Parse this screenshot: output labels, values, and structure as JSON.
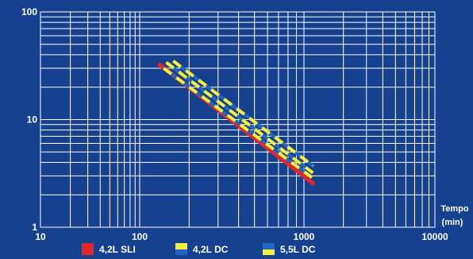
{
  "chart_data": {
    "type": "line",
    "title": "",
    "xlabel": "Tempo",
    "xunit": "(min)",
    "ylabel": "",
    "xscale": "log",
    "yscale": "log",
    "xlim": [
      10,
      10000
    ],
    "ylim": [
      1,
      100
    ],
    "x_ticks": [
      "10",
      "100",
      "1000",
      "10000"
    ],
    "y_ticks": [
      "1",
      "10",
      "100"
    ],
    "grid": true,
    "legend_position": "bottom",
    "background_color": "#16418f",
    "series": [
      {
        "name": "4,2L SLI",
        "style": "solid",
        "colors": [
          "#e3262a"
        ],
        "points": [
          [
            130,
            33
          ],
          [
            1200,
            2.5
          ]
        ]
      },
      {
        "name": "4,2L DC",
        "style": "dashed",
        "colors": [
          "#f7ef3a",
          "#1f67c2"
        ],
        "points": [
          [
            140,
            30
          ],
          [
            1150,
            2.9
          ]
        ]
      },
      {
        "name": "4,2L DC",
        "style": "dashed",
        "colors": [
          "#f7ef3a",
          "#1f67c2"
        ],
        "points": [
          [
            145,
            34
          ],
          [
            1170,
            3.2
          ]
        ]
      },
      {
        "name": "5,5L DC",
        "style": "dashed",
        "colors": [
          "#f7ef3a",
          "#1f67c2"
        ],
        "points": [
          [
            160,
            35
          ],
          [
            1180,
            3.7
          ]
        ]
      }
    ],
    "legend": [
      {
        "label": "4,2L SLI",
        "colors": [
          "#e3262a"
        ]
      },
      {
        "label": "4,2L DC",
        "colors": [
          "#f7ef3a",
          "#1f67c2"
        ]
      },
      {
        "label": "5,5L DC",
        "colors": [
          "#1f67c2",
          "#f7ef3a"
        ]
      }
    ]
  }
}
